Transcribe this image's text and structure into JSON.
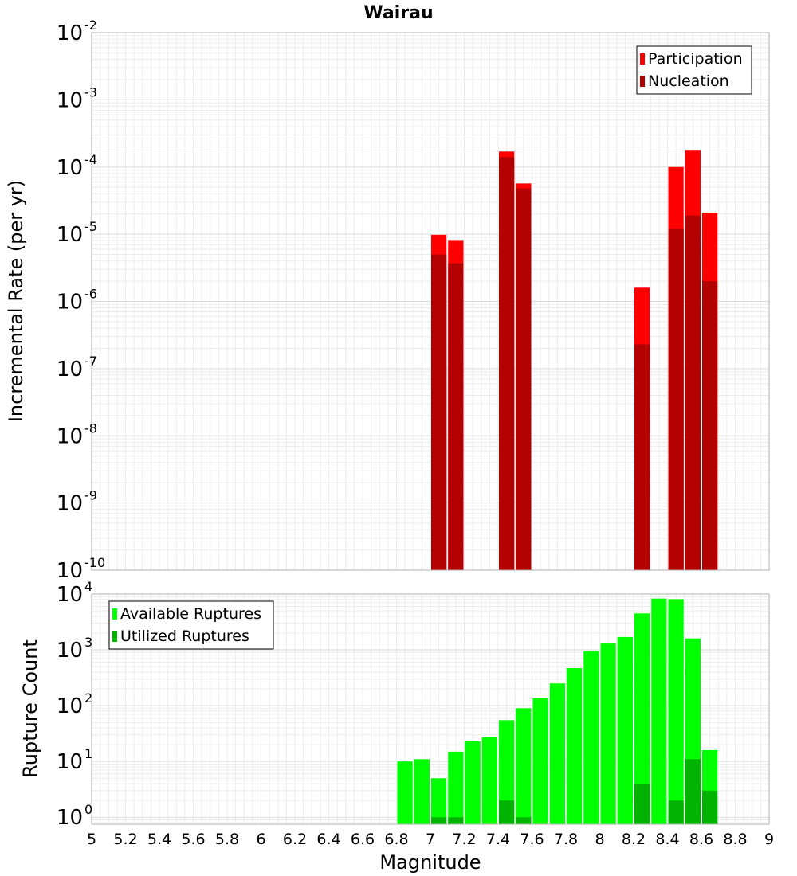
{
  "chart_data": [
    {
      "type": "bar",
      "stacked": "overlay",
      "title": "Wairau",
      "ylabel": "Incremental Rate (per yr)",
      "xlabel": "",
      "y_scale": "log",
      "ylim": [
        1e-10,
        0.01
      ],
      "xlim": [
        5,
        9
      ],
      "y_ticks": [
        {
          "base": "10",
          "exp": "-10"
        },
        {
          "base": "10",
          "exp": "-9"
        },
        {
          "base": "10",
          "exp": "-8"
        },
        {
          "base": "10",
          "exp": "-7"
        },
        {
          "base": "10",
          "exp": "-6"
        },
        {
          "base": "10",
          "exp": "-5"
        },
        {
          "base": "10",
          "exp": "-4"
        },
        {
          "base": "10",
          "exp": "-3"
        },
        {
          "base": "10",
          "exp": "-2"
        }
      ],
      "grid": true,
      "legend_position": "top-right",
      "series": [
        {
          "name": "Participation",
          "color": "#ff0000",
          "points": [
            {
              "x": 7.05,
              "y": 9.8e-06
            },
            {
              "x": 7.15,
              "y": 8.2e-06
            },
            {
              "x": 7.45,
              "y": 0.00017
            },
            {
              "x": 7.55,
              "y": 5.7e-05
            },
            {
              "x": 8.25,
              "y": 1.6e-06
            },
            {
              "x": 8.45,
              "y": 0.0001
            },
            {
              "x": 8.55,
              "y": 0.00018
            },
            {
              "x": 8.65,
              "y": 2.1e-05
            }
          ]
        },
        {
          "name": "Nucleation",
          "color": "#b30000",
          "points": [
            {
              "x": 7.05,
              "y": 5e-06
            },
            {
              "x": 7.15,
              "y": 3.7e-06
            },
            {
              "x": 7.45,
              "y": 0.00014
            },
            {
              "x": 7.55,
              "y": 4.8e-05
            },
            {
              "x": 8.25,
              "y": 2.3e-07
            },
            {
              "x": 8.45,
              "y": 1.2e-05
            },
            {
              "x": 8.55,
              "y": 1.9e-05
            },
            {
              "x": 8.65,
              "y": 2e-06
            }
          ]
        }
      ]
    },
    {
      "type": "bar",
      "stacked": "overlay",
      "title": "",
      "ylabel": "Rupture Count",
      "xlabel": "Magnitude",
      "y_scale": "log",
      "ylim": [
        0.75,
        10000
      ],
      "xlim": [
        5,
        9
      ],
      "y_ticks": [
        {
          "base": "10",
          "exp": "0"
        },
        {
          "base": "10",
          "exp": "1"
        },
        {
          "base": "10",
          "exp": "2"
        },
        {
          "base": "10",
          "exp": "3"
        },
        {
          "base": "10",
          "exp": "4"
        }
      ],
      "x_ticks": [
        "5",
        "5.2",
        "5.4",
        "5.6",
        "5.8",
        "6",
        "6.2",
        "6.4",
        "6.6",
        "6.8",
        "7",
        "7.2",
        "7.4",
        "7.6",
        "7.8",
        "8",
        "8.2",
        "8.4",
        "8.6",
        "8.8",
        "9"
      ],
      "grid": true,
      "legend_position": "top-left",
      "series": [
        {
          "name": "Available Ruptures",
          "color": "#00ff00",
          "points": [
            {
              "x": 6.85,
              "y": 10
            },
            {
              "x": 6.95,
              "y": 11
            },
            {
              "x": 7.05,
              "y": 5
            },
            {
              "x": 7.15,
              "y": 15
            },
            {
              "x": 7.25,
              "y": 23
            },
            {
              "x": 7.35,
              "y": 27
            },
            {
              "x": 7.45,
              "y": 55
            },
            {
              "x": 7.55,
              "y": 90
            },
            {
              "x": 7.65,
              "y": 135
            },
            {
              "x": 7.75,
              "y": 250
            },
            {
              "x": 7.85,
              "y": 470
            },
            {
              "x": 7.95,
              "y": 950
            },
            {
              "x": 8.05,
              "y": 1300
            },
            {
              "x": 8.15,
              "y": 1700
            },
            {
              "x": 8.25,
              "y": 4500
            },
            {
              "x": 8.35,
              "y": 8300
            },
            {
              "x": 8.45,
              "y": 8100
            },
            {
              "x": 8.55,
              "y": 1600
            },
            {
              "x": 8.65,
              "y": 16
            }
          ]
        },
        {
          "name": "Utilized Ruptures",
          "color": "#00b300",
          "points": [
            {
              "x": 7.05,
              "y": 1
            },
            {
              "x": 7.15,
              "y": 1
            },
            {
              "x": 7.45,
              "y": 2
            },
            {
              "x": 7.55,
              "y": 1
            },
            {
              "x": 8.25,
              "y": 4
            },
            {
              "x": 8.45,
              "y": 2
            },
            {
              "x": 8.55,
              "y": 11
            },
            {
              "x": 8.65,
              "y": 3
            }
          ]
        }
      ]
    }
  ]
}
